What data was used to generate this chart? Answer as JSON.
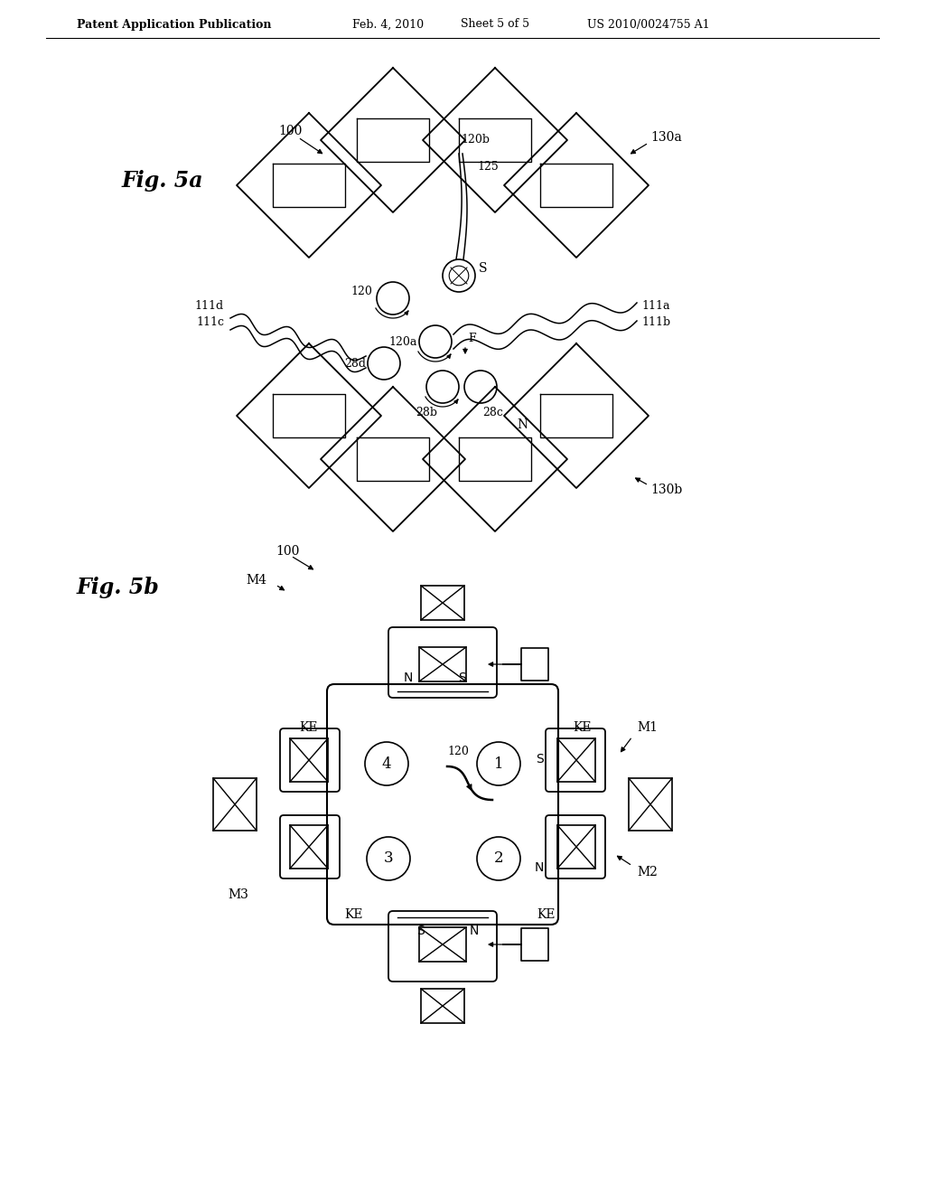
{
  "header_left": "Patent Application Publication",
  "header_center": "Feb. 4, 2010",
  "header_sheet": "Sheet 5 of 5",
  "header_right": "US 2010/0024755 A1",
  "fig5a_label": "Fig. 5a",
  "fig5b_label": "Fig. 5b",
  "background_color": "#ffffff",
  "line_color": "#000000"
}
